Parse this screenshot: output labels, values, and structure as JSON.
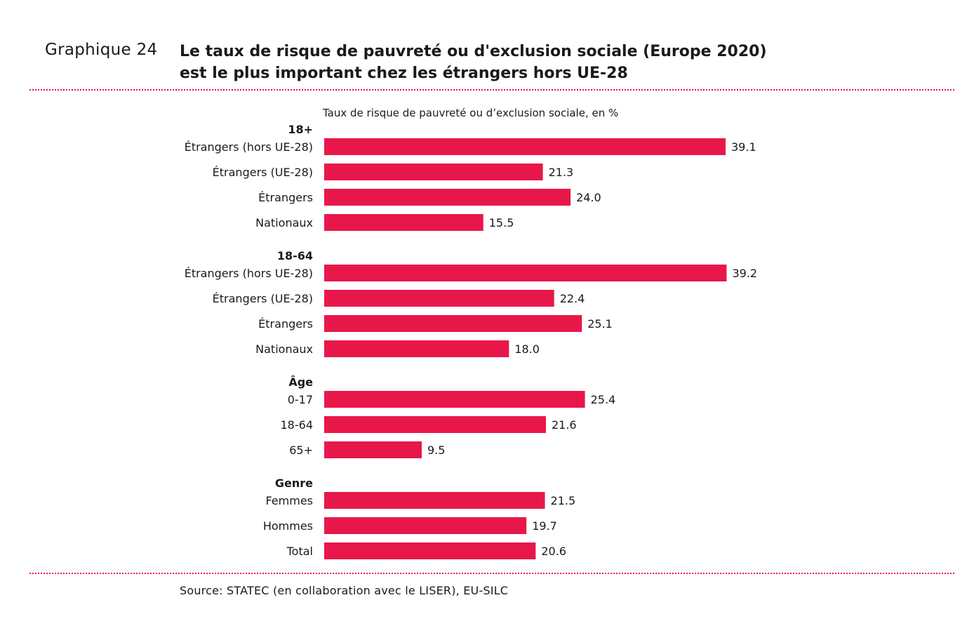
{
  "header": {
    "label": "Graphique 24",
    "title_line1": "Le taux de risque de pauvreté ou d'exclusion sociale (Europe 2020)",
    "title_line2": "est le plus important chez les étrangers hors UE-28"
  },
  "footer": {
    "source": "Source: STATEC (en collaboration avec le LISER), EU-SILC"
  },
  "colors": {
    "bar": "#e8174a",
    "separator": "#e8174a"
  },
  "chart_data": {
    "type": "bar",
    "orientation": "horizontal",
    "subtitle": "Taux de risque de pauvreté ou d’exclusion sociale, en %",
    "xlim": [
      0,
      40
    ],
    "grid": false,
    "groups": [
      {
        "name": "18+",
        "categories": [
          "Étrangers (hors UE-28)",
          "Étrangers (UE-28)",
          "Étrangers",
          "Nationaux"
        ],
        "values": [
          39.1,
          21.3,
          24.0,
          15.5
        ],
        "labels": [
          "39.1",
          "21.3",
          "24.0",
          "15.5"
        ]
      },
      {
        "name": "18-64",
        "categories": [
          "Étrangers (hors UE-28)",
          "Étrangers (UE-28)",
          "Étrangers",
          "Nationaux"
        ],
        "values": [
          39.2,
          22.4,
          25.1,
          18.0
        ],
        "labels": [
          "39.2",
          "22.4",
          "25.1",
          "18.0"
        ]
      },
      {
        "name": "Âge",
        "categories": [
          "0-17",
          "18-64",
          "65+"
        ],
        "values": [
          25.4,
          21.6,
          9.5
        ],
        "labels": [
          "25.4",
          "21.6",
          "9.5"
        ]
      },
      {
        "name": "Genre",
        "categories": [
          "Femmes",
          "Hommes",
          "Total"
        ],
        "values": [
          21.5,
          19.7,
          20.6
        ],
        "labels": [
          "21.5",
          "19.7",
          "20.6"
        ]
      }
    ]
  }
}
